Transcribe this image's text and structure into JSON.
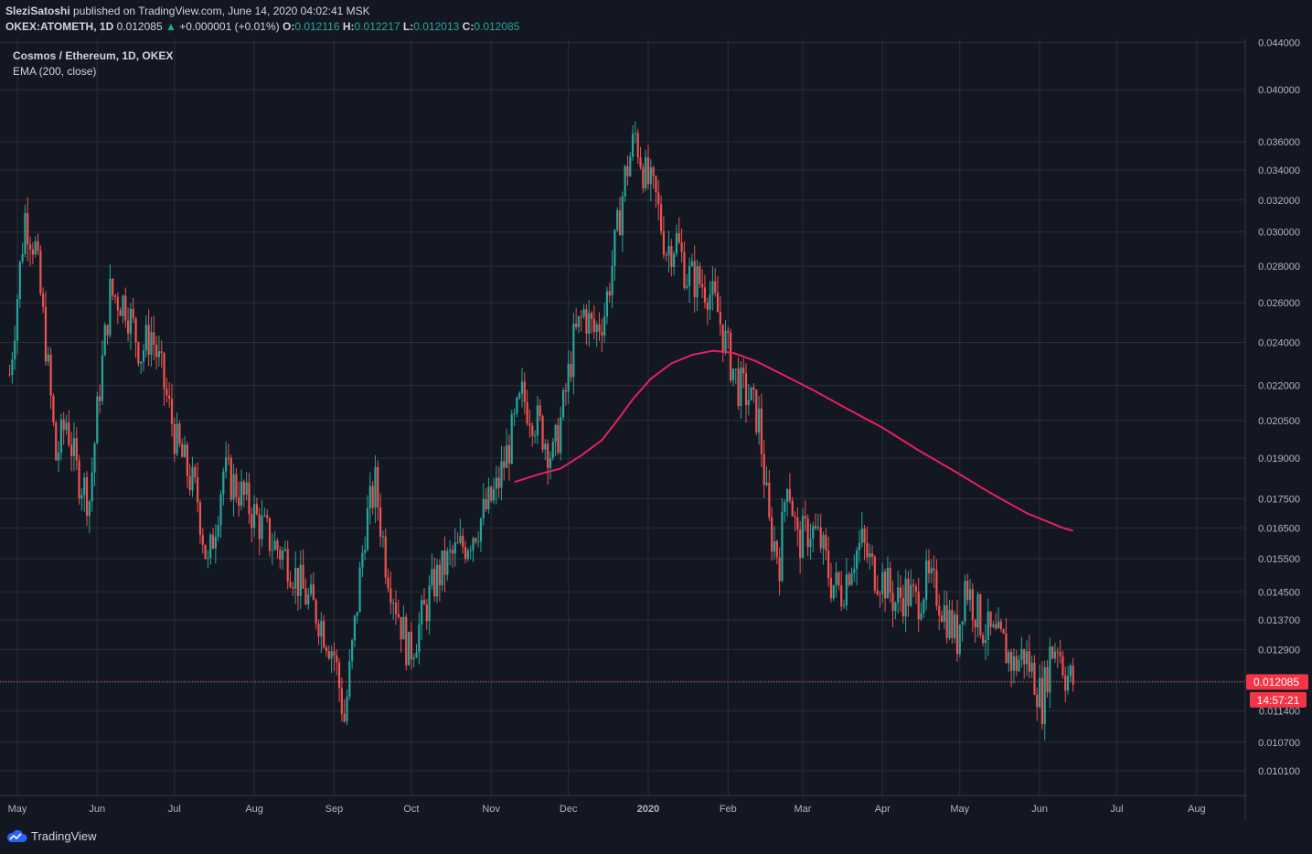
{
  "header": {
    "author": "SleziSatoshi",
    "published_text": " published on TradingView.com, June 14, 2020 04:02:41 MSK",
    "symbol": "OKEX:ATOMETH, 1D",
    "last": "0.012085",
    "change_arrow": "▲",
    "change": "+0.000001 (+0.01%)",
    "o_label": "O:",
    "o": "0.012116",
    "h_label": "H:",
    "h": "0.012217",
    "l_label": "L:",
    "l": "0.012013",
    "c_label": "C:",
    "c": "0.012085"
  },
  "legend": {
    "title": "Cosmos / Ethereum, 1D, OKEX",
    "indicator": "EMA (200, close)"
  },
  "price_badge": "0.012085",
  "countdown_badge": "14:57:21",
  "footer": {
    "brand": "TradingView"
  },
  "colors": {
    "background": "#131722",
    "grid": "#2a2e39",
    "up": "#26a69a",
    "down": "#ef5350",
    "ema": "#e91e63",
    "badge": "#f23645"
  },
  "chart_data": {
    "type": "line",
    "scale": "log",
    "xlabel": "",
    "ylabel": "",
    "price_ticks": [
      0.0101,
      0.0107,
      0.0114,
      0.0121,
      0.0129,
      0.0137,
      0.0145,
      0.0155,
      0.0165,
      0.0175,
      0.019,
      0.0205,
      0.022,
      0.024,
      0.026,
      0.028,
      0.03,
      0.032,
      0.034,
      0.036,
      0.04,
      0.044
    ],
    "tick_labels": [
      "0.010100",
      "0.010700",
      "0.011400",
      "0.012100",
      "0.012900",
      "0.013700",
      "0.014500",
      "0.015500",
      "0.016500",
      "0.017500",
      "0.019000",
      "0.020500",
      "0.022000",
      "0.024000",
      "0.026000",
      "0.028000",
      "0.030000",
      "0.032000",
      "0.034000",
      "0.036000",
      "0.040000",
      "0.044000"
    ],
    "months": [
      "May",
      "Jun",
      "Jul",
      "Aug",
      "Sep",
      "Oct",
      "Nov",
      "Dec",
      "2020",
      "Feb",
      "Mar",
      "Apr",
      "May",
      "Jun",
      "Jul",
      "Aug"
    ],
    "month_dates": [
      "2019-05-01",
      "2019-06-01",
      "2019-07-01",
      "2019-08-01",
      "2019-09-01",
      "2019-10-01",
      "2019-11-01",
      "2019-12-01",
      "2020-01-01",
      "2020-02-01",
      "2020-03-01",
      "2020-04-01",
      "2020-05-01",
      "2020-06-01",
      "2020-07-01",
      "2020-08-01"
    ],
    "close_series": [
      {
        "date": "2019-04-28",
        "value": 0.0225
      },
      {
        "date": "2019-05-04",
        "value": 0.031
      },
      {
        "date": "2019-05-08",
        "value": 0.029
      },
      {
        "date": "2019-05-12",
        "value": 0.024
      },
      {
        "date": "2019-05-16",
        "value": 0.019
      },
      {
        "date": "2019-05-20",
        "value": 0.0205
      },
      {
        "date": "2019-05-24",
        "value": 0.0185
      },
      {
        "date": "2019-05-29",
        "value": 0.0175
      },
      {
        "date": "2019-06-02",
        "value": 0.022
      },
      {
        "date": "2019-06-06",
        "value": 0.0265
      },
      {
        "date": "2019-06-12",
        "value": 0.026
      },
      {
        "date": "2019-06-18",
        "value": 0.0235
      },
      {
        "date": "2019-06-22",
        "value": 0.0245
      },
      {
        "date": "2019-06-26",
        "value": 0.0225
      },
      {
        "date": "2019-07-02",
        "value": 0.0195
      },
      {
        "date": "2019-07-06",
        "value": 0.0185
      },
      {
        "date": "2019-07-10",
        "value": 0.0175
      },
      {
        "date": "2019-07-14",
        "value": 0.0152
      },
      {
        "date": "2019-07-20",
        "value": 0.0185
      },
      {
        "date": "2019-07-26",
        "value": 0.0178
      },
      {
        "date": "2019-08-02",
        "value": 0.0168
      },
      {
        "date": "2019-08-08",
        "value": 0.016
      },
      {
        "date": "2019-08-14",
        "value": 0.0155
      },
      {
        "date": "2019-08-20",
        "value": 0.0145
      },
      {
        "date": "2019-08-26",
        "value": 0.0138
      },
      {
        "date": "2019-09-01",
        "value": 0.0128
      },
      {
        "date": "2019-09-05",
        "value": 0.0112
      },
      {
        "date": "2019-09-09",
        "value": 0.0135
      },
      {
        "date": "2019-09-13",
        "value": 0.0165
      },
      {
        "date": "2019-09-17",
        "value": 0.018
      },
      {
        "date": "2019-09-21",
        "value": 0.0155
      },
      {
        "date": "2019-09-25",
        "value": 0.0142
      },
      {
        "date": "2019-09-30",
        "value": 0.0128
      },
      {
        "date": "2019-10-04",
        "value": 0.0135
      },
      {
        "date": "2019-10-10",
        "value": 0.0148
      },
      {
        "date": "2019-10-16",
        "value": 0.0155
      },
      {
        "date": "2019-10-22",
        "value": 0.016
      },
      {
        "date": "2019-10-28",
        "value": 0.0168
      },
      {
        "date": "2019-11-03",
        "value": 0.0178
      },
      {
        "date": "2019-11-08",
        "value": 0.0195
      },
      {
        "date": "2019-11-13",
        "value": 0.0215
      },
      {
        "date": "2019-11-17",
        "value": 0.0208
      },
      {
        "date": "2019-11-21",
        "value": 0.02
      },
      {
        "date": "2019-11-25",
        "value": 0.019
      },
      {
        "date": "2019-11-29",
        "value": 0.021
      },
      {
        "date": "2019-12-03",
        "value": 0.024
      },
      {
        "date": "2019-12-07",
        "value": 0.0255
      },
      {
        "date": "2019-12-11",
        "value": 0.0245
      },
      {
        "date": "2019-12-15",
        "value": 0.0255
      },
      {
        "date": "2019-12-19",
        "value": 0.029
      },
      {
        "date": "2019-12-23",
        "value": 0.0335
      },
      {
        "date": "2019-12-27",
        "value": 0.0365
      },
      {
        "date": "2019-12-31",
        "value": 0.0335
      },
      {
        "date": "2020-01-04",
        "value": 0.032
      },
      {
        "date": "2020-01-08",
        "value": 0.029
      },
      {
        "date": "2020-01-12",
        "value": 0.0295
      },
      {
        "date": "2020-01-16",
        "value": 0.0275
      },
      {
        "date": "2020-01-20",
        "value": 0.0272
      },
      {
        "date": "2020-01-24",
        "value": 0.0268
      },
      {
        "date": "2020-01-28",
        "value": 0.0255
      },
      {
        "date": "2020-02-01",
        "value": 0.0235
      },
      {
        "date": "2020-02-05",
        "value": 0.022
      },
      {
        "date": "2020-02-09",
        "value": 0.0215
      },
      {
        "date": "2020-02-13",
        "value": 0.0205
      },
      {
        "date": "2020-02-17",
        "value": 0.0165
      },
      {
        "date": "2020-02-21",
        "value": 0.0155
      },
      {
        "date": "2020-02-24",
        "value": 0.0185
      },
      {
        "date": "2020-02-28",
        "value": 0.016
      },
      {
        "date": "2020-03-04",
        "value": 0.0165
      },
      {
        "date": "2020-03-08",
        "value": 0.016
      },
      {
        "date": "2020-03-12",
        "value": 0.0148
      },
      {
        "date": "2020-03-16",
        "value": 0.0145
      },
      {
        "date": "2020-03-20",
        "value": 0.0155
      },
      {
        "date": "2020-03-24",
        "value": 0.016
      },
      {
        "date": "2020-03-28",
        "value": 0.0152
      },
      {
        "date": "2020-04-02",
        "value": 0.0148
      },
      {
        "date": "2020-04-06",
        "value": 0.0142
      },
      {
        "date": "2020-04-10",
        "value": 0.0145
      },
      {
        "date": "2020-04-14",
        "value": 0.0142
      },
      {
        "date": "2020-04-18",
        "value": 0.0148
      },
      {
        "date": "2020-04-22",
        "value": 0.0145
      },
      {
        "date": "2020-04-26",
        "value": 0.0138
      },
      {
        "date": "2020-04-30",
        "value": 0.0132
      },
      {
        "date": "2020-05-03",
        "value": 0.0148
      },
      {
        "date": "2020-05-06",
        "value": 0.0142
      },
      {
        "date": "2020-05-10",
        "value": 0.0135
      },
      {
        "date": "2020-05-14",
        "value": 0.0132
      },
      {
        "date": "2020-05-18",
        "value": 0.013
      },
      {
        "date": "2020-05-22",
        "value": 0.0125
      },
      {
        "date": "2020-05-26",
        "value": 0.0128
      },
      {
        "date": "2020-05-30",
        "value": 0.0122
      },
      {
        "date": "2020-06-02",
        "value": 0.0116
      },
      {
        "date": "2020-06-05",
        "value": 0.0128
      },
      {
        "date": "2020-06-08",
        "value": 0.0131
      },
      {
        "date": "2020-06-11",
        "value": 0.0123
      },
      {
        "date": "2020-06-14",
        "value": 0.012085
      }
    ],
    "ema_series": [
      {
        "date": "2019-11-10",
        "value": 0.0181
      },
      {
        "date": "2019-11-20",
        "value": 0.0184
      },
      {
        "date": "2019-11-28",
        "value": 0.0186
      },
      {
        "date": "2019-12-06",
        "value": 0.0191
      },
      {
        "date": "2019-12-14",
        "value": 0.0197
      },
      {
        "date": "2019-12-20",
        "value": 0.0205
      },
      {
        "date": "2019-12-26",
        "value": 0.0214
      },
      {
        "date": "2020-01-02",
        "value": 0.0223
      },
      {
        "date": "2020-01-10",
        "value": 0.023
      },
      {
        "date": "2020-01-18",
        "value": 0.0234
      },
      {
        "date": "2020-01-26",
        "value": 0.0236
      },
      {
        "date": "2020-02-03",
        "value": 0.0235
      },
      {
        "date": "2020-02-12",
        "value": 0.0231
      },
      {
        "date": "2020-02-22",
        "value": 0.0225
      },
      {
        "date": "2020-03-05",
        "value": 0.0218
      },
      {
        "date": "2020-03-18",
        "value": 0.021
      },
      {
        "date": "2020-04-01",
        "value": 0.0202
      },
      {
        "date": "2020-04-15",
        "value": 0.0193
      },
      {
        "date": "2020-04-29",
        "value": 0.0185
      },
      {
        "date": "2020-05-13",
        "value": 0.0177
      },
      {
        "date": "2020-05-27",
        "value": 0.017
      },
      {
        "date": "2020-06-10",
        "value": 0.0165
      },
      {
        "date": "2020-06-14",
        "value": 0.0164
      }
    ]
  }
}
